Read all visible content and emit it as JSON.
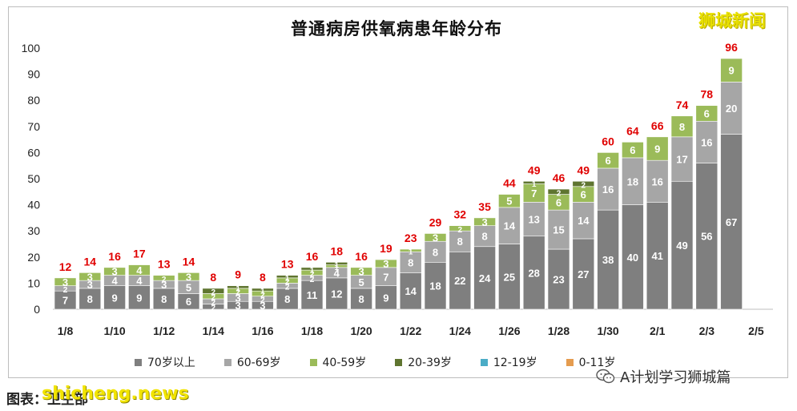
{
  "title": "普通病房供氧病患年龄分布",
  "watermark": "狮城新闻",
  "footer": {
    "source": "图表：卫生部",
    "site": "shicheng.news",
    "wechat": "A计划学习狮城篇"
  },
  "colors": {
    "70+": "#7f7f7f",
    "60-69": "#a6a6a6",
    "40-59": "#9bbb59",
    "20-39": "#5f7530",
    "12-19": "#4bacc6",
    "0-11": "#e59c4f",
    "total_label": "#e00000"
  },
  "chart_data": {
    "type": "bar",
    "stacked": true,
    "title": "普通病房供氧病患年龄分布",
    "categories": [
      "1/8",
      "1/9",
      "1/10",
      "1/11",
      "1/12",
      "1/13",
      "1/14",
      "1/15",
      "1/16",
      "1/17",
      "1/18",
      "1/19",
      "1/20",
      "1/21",
      "1/22",
      "1/23",
      "1/24",
      "1/25",
      "1/26",
      "1/27",
      "1/28",
      "1/29",
      "1/30",
      "1/31",
      "2/1",
      "2/2",
      "2/3",
      "2/4"
    ],
    "xtick_labels": [
      "1/8",
      "1/10",
      "1/12",
      "1/14",
      "1/16",
      "1/18",
      "1/20",
      "1/22",
      "1/24",
      "1/26",
      "1/28",
      "1/30",
      "2/1",
      "2/3",
      "2/5"
    ],
    "ylim": [
      0,
      100
    ],
    "yticks": [
      0,
      10,
      20,
      30,
      40,
      50,
      60,
      70,
      80,
      90,
      100
    ],
    "series": [
      {
        "name": "70岁以上",
        "key": "70+",
        "values": [
          7,
          8,
          9,
          9,
          8,
          6,
          2,
          3,
          3,
          8,
          11,
          12,
          8,
          9,
          14,
          18,
          22,
          24,
          25,
          28,
          23,
          27,
          38,
          40,
          41,
          49,
          56,
          67
        ]
      },
      {
        "name": "60-69岁",
        "key": "60-69",
        "values": [
          2,
          3,
          4,
          4,
          3,
          5,
          2,
          3,
          2,
          2,
          2,
          4,
          5,
          7,
          8,
          8,
          8,
          8,
          14,
          13,
          15,
          14,
          16,
          18,
          16,
          17,
          16,
          20
        ]
      },
      {
        "name": "40-59岁",
        "key": "40-59",
        "values": [
          3,
          3,
          3,
          4,
          2,
          3,
          2,
          2,
          2,
          2,
          2,
          1,
          3,
          3,
          1,
          3,
          2,
          3,
          5,
          7,
          6,
          6,
          6,
          6,
          9,
          8,
          6,
          9
        ]
      },
      {
        "name": "20-39岁",
        "key": "20-39",
        "values": [
          0,
          0,
          0,
          0,
          0,
          0,
          2,
          1,
          1,
          1,
          1,
          1,
          0,
          0,
          0,
          0,
          0,
          0,
          0,
          1,
          2,
          2,
          0,
          0,
          0,
          0,
          0,
          0
        ]
      },
      {
        "name": "12-19岁",
        "key": "12-19",
        "values": [
          0,
          0,
          0,
          0,
          0,
          0,
          0,
          0,
          0,
          0,
          0,
          0,
          0,
          0,
          0,
          0,
          0,
          0,
          0,
          0,
          0,
          0,
          0,
          0,
          0,
          0,
          0,
          0
        ]
      },
      {
        "name": "0-11岁",
        "key": "0-11",
        "values": [
          0,
          0,
          0,
          0,
          0,
          0,
          0,
          0,
          0,
          0,
          0,
          0,
          0,
          0,
          0,
          0,
          0,
          0,
          0,
          0,
          0,
          0,
          0,
          0,
          0,
          0,
          0,
          0
        ]
      }
    ],
    "totals": [
      12,
      14,
      16,
      17,
      13,
      14,
      8,
      9,
      8,
      13,
      16,
      18,
      16,
      19,
      23,
      29,
      32,
      35,
      44,
      49,
      46,
      49,
      60,
      64,
      66,
      74,
      78,
      96
    ],
    "legend_position": "bottom",
    "grid": false
  }
}
